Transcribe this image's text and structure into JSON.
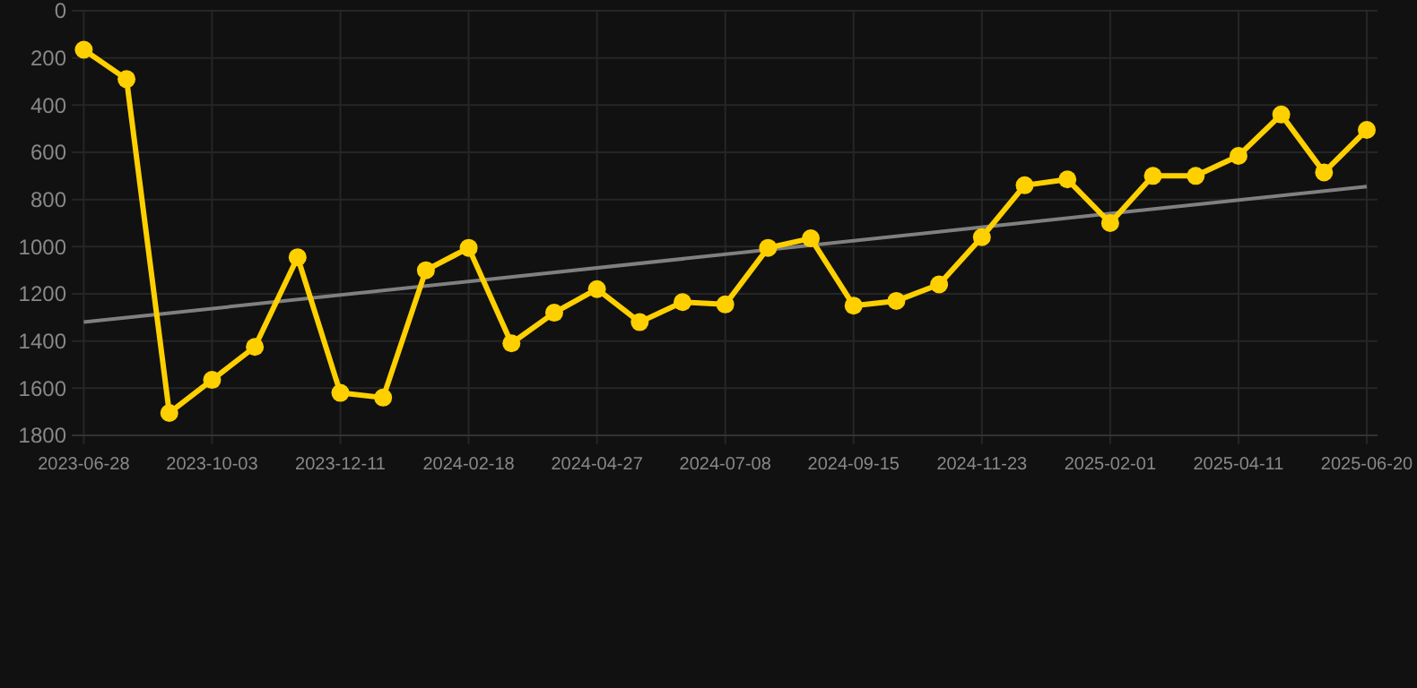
{
  "chart_data": {
    "type": "line",
    "categories": [
      "2023-06-28",
      null,
      null,
      "2023-10-03",
      null,
      null,
      "2023-12-11",
      null,
      null,
      "2024-02-18",
      null,
      null,
      "2024-04-27",
      null,
      null,
      "2024-07-08",
      null,
      null,
      "2024-09-15",
      null,
      null,
      "2024-11-23",
      null,
      null,
      "2025-02-01",
      null,
      null,
      "2025-04-11",
      null,
      null,
      "2025-06-20"
    ],
    "series": [
      {
        "color": "#ffd000",
        "marker": "circle",
        "values": [
          165,
          290,
          1705,
          1565,
          1425,
          1045,
          1620,
          1640,
          1100,
          1005,
          1410,
          1280,
          1180,
          1320,
          1235,
          1245,
          1005,
          965,
          1250,
          1230,
          1160,
          960,
          740,
          715,
          900,
          700,
          700,
          615,
          440,
          685,
          505
        ]
      },
      {
        "type": "line",
        "color": "#808080",
        "marker": "none",
        "values": [
          1320,
          null,
          null,
          null,
          null,
          null,
          null,
          null,
          null,
          null,
          null,
          null,
          null,
          null,
          null,
          null,
          null,
          null,
          null,
          null,
          null,
          null,
          null,
          null,
          null,
          null,
          null,
          null,
          null,
          null,
          745
        ]
      }
    ],
    "ylim": [
      1800,
      0
    ],
    "yticks": [
      0,
      200,
      400,
      600,
      800,
      1000,
      1200,
      1400,
      1600,
      1800
    ],
    "grid": true
  }
}
